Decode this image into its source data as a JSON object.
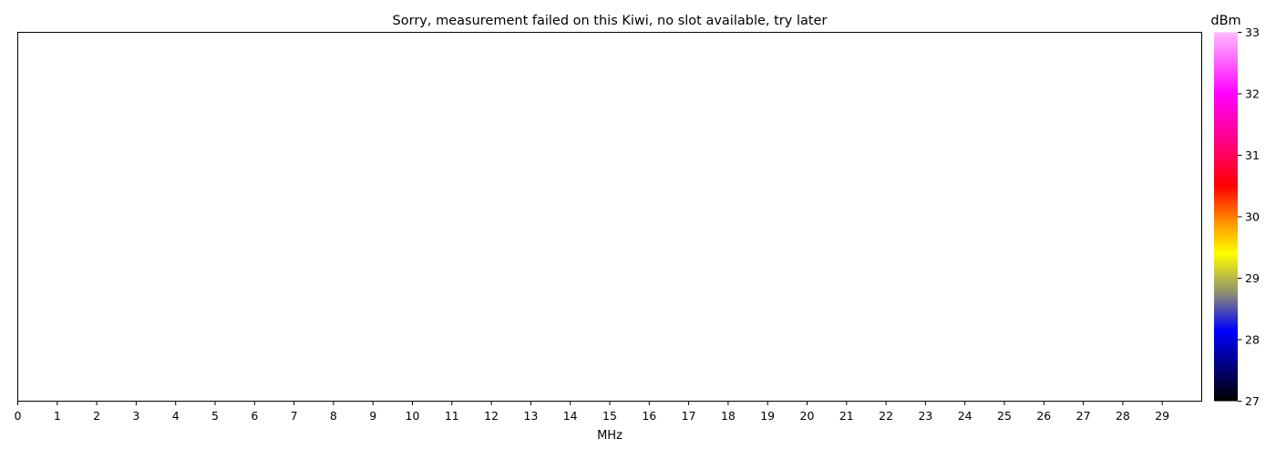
{
  "chart_data": {
    "type": "heatmap",
    "title": "Sorry, measurement failed on this Kiwi, no slot available, try later",
    "xlabel": "MHz",
    "ylabel": "",
    "xlim": [
      0,
      30
    ],
    "xticks": [
      "0",
      "1",
      "2",
      "3",
      "4",
      "5",
      "6",
      "7",
      "8",
      "9",
      "10",
      "11",
      "12",
      "13",
      "14",
      "15",
      "16",
      "17",
      "18",
      "19",
      "20",
      "21",
      "22",
      "23",
      "24",
      "25",
      "26",
      "27",
      "28",
      "29"
    ],
    "values": [],
    "grid": false,
    "colorbar": {
      "label": "dBm",
      "range": [
        27,
        33
      ],
      "ticks": [
        "27",
        "28",
        "29",
        "30",
        "31",
        "32",
        "33"
      ],
      "colors": [
        {
          "value": 27.0,
          "color": "#000000"
        },
        {
          "value": 27.5,
          "color": "#00006e"
        },
        {
          "value": 28.15,
          "color": "#0000ff"
        },
        {
          "value": 28.75,
          "color": "#8c8c73"
        },
        {
          "value": 29.4,
          "color": "#ffff00"
        },
        {
          "value": 29.85,
          "color": "#ffa000"
        },
        {
          "value": 30.5,
          "color": "#ff0000"
        },
        {
          "value": 31.2,
          "color": "#ff0080"
        },
        {
          "value": 32.0,
          "color": "#ff00ff"
        },
        {
          "value": 33.0,
          "color": "#ffbbff"
        }
      ]
    }
  }
}
